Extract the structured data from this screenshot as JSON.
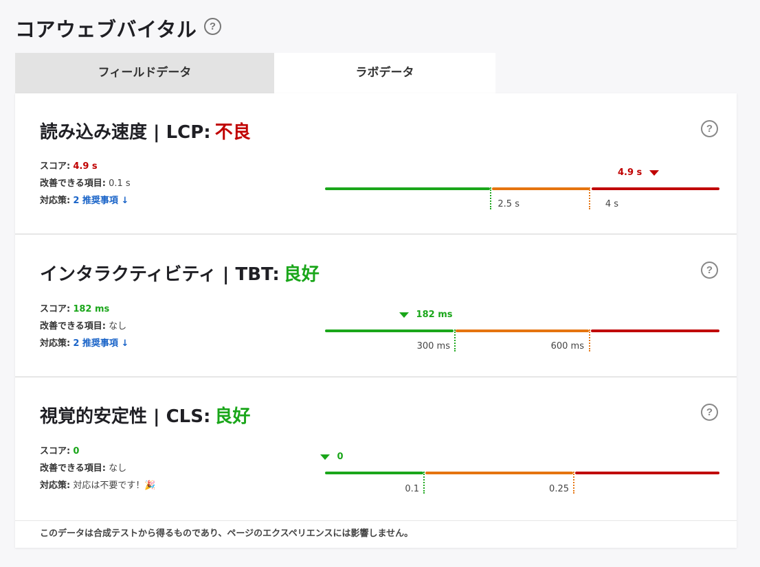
{
  "header": {
    "title": "コアウェブバイタル",
    "help": "?"
  },
  "tabs": [
    {
      "label": "フィールドデータ",
      "active": false
    },
    {
      "label": "ラボデータ",
      "active": true
    }
  ],
  "metrics": [
    {
      "title": "読み込み速度 | LCP:",
      "status": "不良",
      "status_color": "#c00000",
      "score_label": "スコア:",
      "score_value": "4.9 s",
      "improve_label": "改善できる項目:",
      "improve_value": "0.1 s",
      "action_label": "対応策:",
      "action_value": "2 推奨事項 ↓",
      "marker_label": "4.9 s",
      "thresholds": [
        "2.5 s",
        "4 s"
      ]
    },
    {
      "title": "インタラクティビティ | TBT:",
      "status": "良好",
      "status_color": "#1aa61a",
      "score_label": "スコア:",
      "score_value": "182 ms",
      "improve_label": "改善できる項目:",
      "improve_value": "なし",
      "action_label": "対応策:",
      "action_value": "2 推奨事項 ↓",
      "marker_label": "182 ms",
      "thresholds": [
        "300 ms",
        "600 ms"
      ]
    },
    {
      "title": "視覚的安定性 | CLS:",
      "status": "良好",
      "status_color": "#1aa61a",
      "score_label": "スコア:",
      "score_value": "0",
      "improve_label": "改善できる項目:",
      "improve_value": "なし",
      "action_label": "対応策:",
      "action_value": "対応は不要です！🎉",
      "marker_label": "0",
      "thresholds": [
        "0.1",
        "0.25"
      ]
    }
  ],
  "footer": {
    "text": "このデータは合成テストから得るものであり、ページのエクスペリエンスには影響しません。"
  },
  "colors": {
    "good": "#1aa61a",
    "needs_improvement": "#e5740f",
    "poor": "#c00000",
    "link": "#1a64c8"
  }
}
